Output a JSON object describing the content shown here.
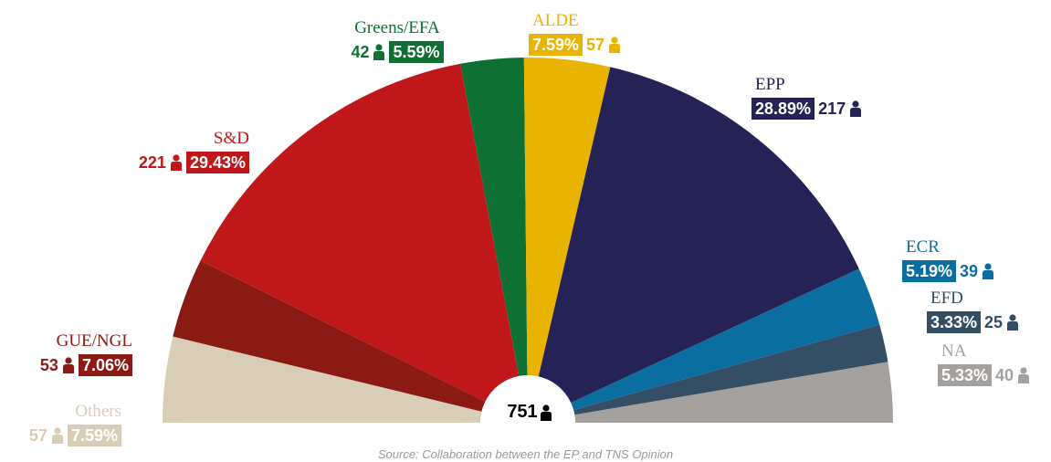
{
  "chart_data": {
    "type": "parliament",
    "categories": [
      "Others",
      "GUE/NGL",
      "S&D",
      "Greens/EFA",
      "ALDE",
      "EPP",
      "ECR",
      "EFD",
      "NA"
    ],
    "values": [
      57,
      53,
      221,
      42,
      57,
      217,
      39,
      25,
      40
    ],
    "shares": [
      "7.59%",
      "7.06%",
      "29.43%",
      "5.59%",
      "7.59%",
      "28.89%",
      "5.19%",
      "3.33%",
      "5.33%"
    ],
    "colors": [
      "#d8ceb8",
      "#8b1a14",
      "#c0181a",
      "#0e7033",
      "#e9b400",
      "#252256",
      "#0a6fa0",
      "#344e66",
      "#a4a09e"
    ],
    "total": 751,
    "source": "Source: Collaboration between the EP and TNS Opinion"
  }
}
